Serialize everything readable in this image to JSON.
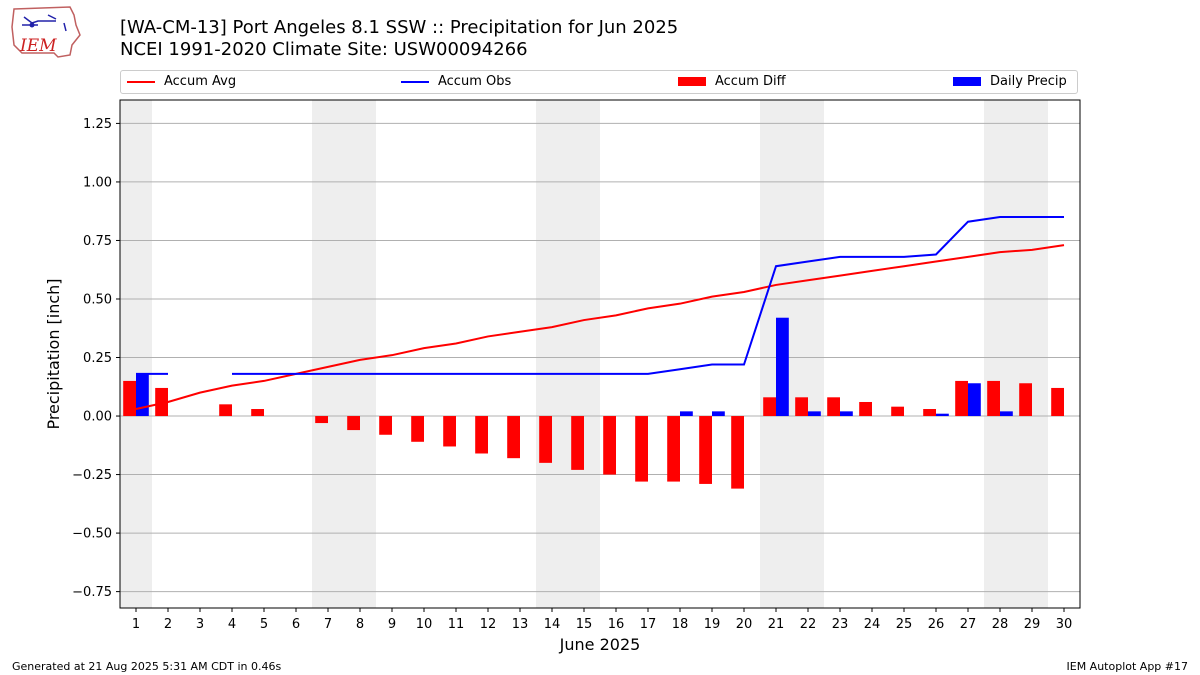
{
  "header": {
    "logo_text": "IEM",
    "title_line1": "[WA-CM-13] Port Angeles 8.1 SSW :: Precipitation for Jun 2025",
    "title_line2": "NCEI 1991-2020 Climate Site: USW00094266"
  },
  "legend": {
    "items": [
      {
        "label": "Accum Avg",
        "kind": "line",
        "color": "#ff0000"
      },
      {
        "label": "Accum Obs",
        "kind": "line",
        "color": "#0000ff"
      },
      {
        "label": "Accum Diff",
        "kind": "box",
        "color": "#ff0000"
      },
      {
        "label": "Daily Precip",
        "kind": "box",
        "color": "#0000ff"
      }
    ]
  },
  "footer": {
    "generated": "Generated at 21 Aug 2025 5:31 AM CDT in 0.46s",
    "app": "IEM Autoplot App #17"
  },
  "chart_data": {
    "type": "bar",
    "title": "[WA-CM-13] Port Angeles 8.1 SSW :: Precipitation for Jun 2025",
    "subtitle": "NCEI 1991-2020 Climate Site: USW00094266",
    "xlabel": "June 2025",
    "ylabel": "Precipitation [inch]",
    "xlim": [
      0.5,
      30.5
    ],
    "ylim": [
      -0.82,
      1.35
    ],
    "yticks": [
      -0.75,
      -0.5,
      -0.25,
      0.0,
      0.25,
      0.5,
      0.75,
      1.0,
      1.25
    ],
    "ytick_labels": [
      "−0.75",
      "−0.50",
      "−0.25",
      "0.00",
      "0.25",
      "0.50",
      "0.75",
      "1.00",
      "1.25"
    ],
    "grid": true,
    "legend_position": "top",
    "weekend_shading_days": [
      1,
      7,
      8,
      14,
      15,
      21,
      22,
      28,
      29
    ],
    "shading_color": "#eeeeee",
    "days": [
      1,
      2,
      3,
      4,
      5,
      6,
      7,
      8,
      9,
      10,
      11,
      12,
      13,
      14,
      15,
      16,
      17,
      18,
      19,
      20,
      21,
      22,
      23,
      24,
      25,
      26,
      27,
      28,
      29,
      30
    ],
    "series": [
      {
        "name": "Accum Avg",
        "kind": "line",
        "color": "#ff0000",
        "values": [
          0.03,
          0.06,
          0.1,
          0.13,
          0.15,
          0.18,
          0.21,
          0.24,
          0.26,
          0.29,
          0.31,
          0.34,
          0.36,
          0.38,
          0.41,
          0.43,
          0.46,
          0.48,
          0.51,
          0.53,
          0.56,
          0.58,
          0.6,
          0.62,
          0.64,
          0.66,
          0.68,
          0.7,
          0.71,
          0.73
        ]
      },
      {
        "name": "Accum Obs",
        "kind": "line",
        "color": "#0000ff",
        "values": [
          0.18,
          0.18,
          null,
          0.18,
          0.18,
          0.18,
          0.18,
          0.18,
          0.18,
          0.18,
          0.18,
          0.18,
          0.18,
          0.18,
          0.18,
          0.18,
          0.18,
          0.2,
          0.22,
          0.22,
          0.64,
          0.66,
          0.68,
          0.68,
          0.68,
          0.69,
          0.83,
          0.85,
          0.85,
          0.85
        ]
      },
      {
        "name": "Accum Diff",
        "kind": "bar",
        "color": "#ff0000",
        "values": [
          0.15,
          0.12,
          null,
          0.05,
          0.03,
          0.0,
          -0.03,
          -0.06,
          -0.08,
          -0.11,
          -0.13,
          -0.16,
          -0.18,
          -0.2,
          -0.23,
          -0.25,
          -0.28,
          -0.28,
          -0.29,
          -0.31,
          0.08,
          0.08,
          0.08,
          0.06,
          0.04,
          0.03,
          0.15,
          0.15,
          0.14,
          0.12
        ]
      },
      {
        "name": "Daily Precip",
        "kind": "bar",
        "color": "#0000ff",
        "values": [
          0.18,
          0,
          0,
          0,
          0,
          0,
          0,
          0,
          0,
          0,
          0,
          0,
          0,
          0,
          0,
          0,
          0,
          0.02,
          0.02,
          0,
          0.42,
          0.02,
          0.02,
          0,
          0,
          0.01,
          0.14,
          0.02,
          0,
          0
        ]
      }
    ]
  }
}
